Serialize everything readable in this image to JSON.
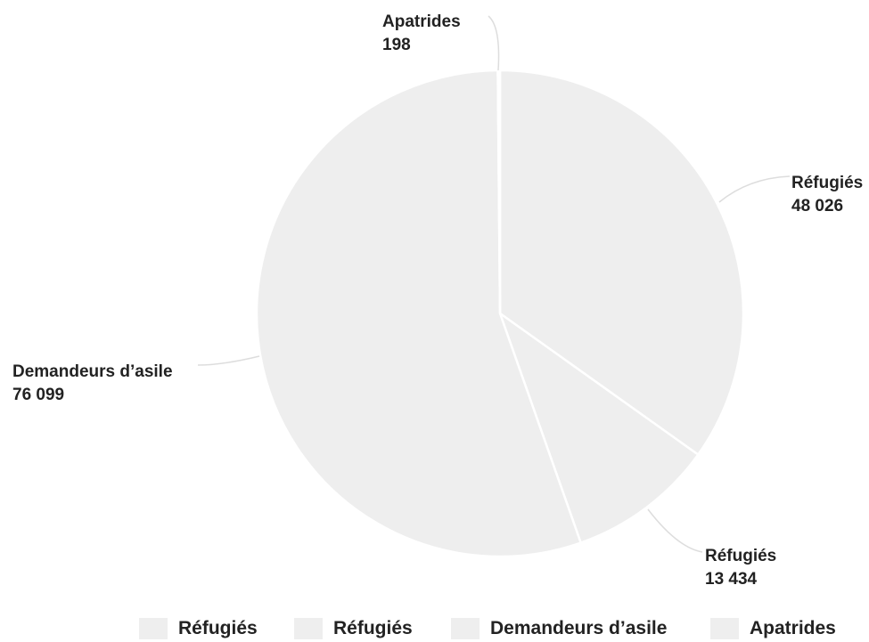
{
  "chart_data": {
    "type": "pie",
    "slices": [
      {
        "name": "Réfugiés",
        "value": 48026,
        "value_label": "48 026"
      },
      {
        "name": "Réfugiés",
        "value": 13434,
        "value_label": "13 434"
      },
      {
        "name": "Demandeurs d’asile",
        "value": 76099,
        "value_label": "76 099"
      },
      {
        "name": "Apatrides",
        "value": 198,
        "value_label": "198"
      }
    ],
    "legend": [
      "Réfugiés",
      "Réfugiés",
      "Demandeurs d’asile",
      "Apatrides"
    ],
    "legend_placement": "bottom",
    "slice_color": "#eeeeee",
    "separator_color": "#ffffff",
    "leader_color": "#dddddd",
    "text_color": "#222222"
  }
}
